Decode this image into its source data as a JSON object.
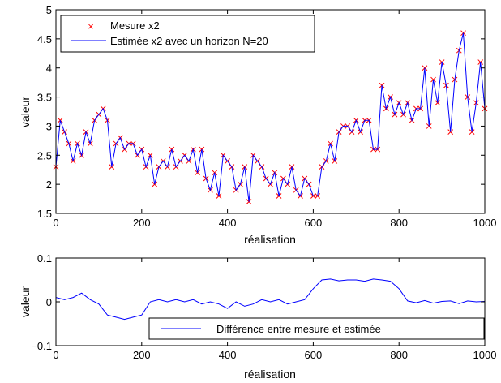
{
  "chart_data": [
    {
      "type": "line",
      "xlabel": "réalisation",
      "ylabel": "valeur",
      "xlim": [
        0,
        1000
      ],
      "ylim": [
        1.5,
        5
      ],
      "xticks": [
        0,
        200,
        400,
        600,
        800,
        1000
      ],
      "yticks": [
        1.5,
        2,
        2.5,
        3,
        3.5,
        4,
        4.5,
        5
      ],
      "ytick_labels": [
        "1.5",
        "2",
        "2.5",
        "3",
        "3.5",
        "4",
        "4.5",
        "5"
      ],
      "grid": false,
      "legend_position": "top-left",
      "series": [
        {
          "name": "Mesure x2",
          "style": "markers",
          "marker": "x",
          "color": "#ff0000",
          "x": [
            0,
            10,
            20,
            30,
            40,
            50,
            60,
            70,
            80,
            90,
            100,
            110,
            120,
            130,
            140,
            150,
            160,
            170,
            180,
            190,
            200,
            210,
            220,
            230,
            240,
            250,
            260,
            270,
            280,
            290,
            300,
            310,
            320,
            330,
            340,
            350,
            360,
            370,
            380,
            390,
            400,
            410,
            420,
            430,
            440,
            450,
            460,
            470,
            480,
            490,
            500,
            510,
            520,
            530,
            540,
            550,
            560,
            570,
            580,
            590,
            600,
            610,
            620,
            630,
            640,
            650,
            660,
            670,
            680,
            690,
            700,
            710,
            720,
            730,
            740,
            750,
            760,
            770,
            780,
            790,
            800,
            810,
            820,
            830,
            840,
            850,
            860,
            870,
            880,
            890,
            900,
            910,
            920,
            930,
            940,
            950,
            960,
            970,
            980,
            990,
            1000
          ],
          "values": [
            2.3,
            3.1,
            2.9,
            2.7,
            2.4,
            2.7,
            2.5,
            2.9,
            2.7,
            3.1,
            3.2,
            3.3,
            3.1,
            2.3,
            2.7,
            2.8,
            2.6,
            2.7,
            2.7,
            2.5,
            2.6,
            2.3,
            2.5,
            2.0,
            2.3,
            2.4,
            2.3,
            2.6,
            2.3,
            2.4,
            2.5,
            2.4,
            2.6,
            2.2,
            2.6,
            2.1,
            1.9,
            2.2,
            1.8,
            2.5,
            2.4,
            2.3,
            1.9,
            2.0,
            2.3,
            1.7,
            2.5,
            2.4,
            2.3,
            2.1,
            2.0,
            2.2,
            1.8,
            2.1,
            2.0,
            2.3,
            1.9,
            1.8,
            2.1,
            2.0,
            1.8,
            1.8,
            2.3,
            2.4,
            2.7,
            2.4,
            2.9,
            3.0,
            3.0,
            2.9,
            3.1,
            2.9,
            3.1,
            3.1,
            2.6,
            2.6,
            3.7,
            3.3,
            3.5,
            3.2,
            3.4,
            3.2,
            3.4,
            3.1,
            3.3,
            3.3,
            4.0,
            3.0,
            3.8,
            3.4,
            4.1,
            3.7,
            2.9,
            3.8,
            4.3,
            4.6,
            3.5,
            2.9,
            3.4,
            4.1,
            3.3
          ]
        },
        {
          "name": "Estimée x2 avec un horizon N=20",
          "style": "line",
          "color": "#0000ff",
          "x": [
            0,
            10,
            20,
            30,
            40,
            50,
            60,
            70,
            80,
            90,
            100,
            110,
            120,
            130,
            140,
            150,
            160,
            170,
            180,
            190,
            200,
            210,
            220,
            230,
            240,
            250,
            260,
            270,
            280,
            290,
            300,
            310,
            320,
            330,
            340,
            350,
            360,
            370,
            380,
            390,
            400,
            410,
            420,
            430,
            440,
            450,
            460,
            470,
            480,
            490,
            500,
            510,
            520,
            530,
            540,
            550,
            560,
            570,
            580,
            590,
            600,
            610,
            620,
            630,
            640,
            650,
            660,
            670,
            680,
            690,
            700,
            710,
            720,
            730,
            740,
            750,
            760,
            770,
            780,
            790,
            800,
            810,
            820,
            830,
            840,
            850,
            860,
            870,
            880,
            890,
            900,
            910,
            920,
            930,
            940,
            950,
            960,
            970,
            980,
            990,
            1000
          ],
          "values": [
            2.3,
            3.1,
            2.9,
            2.7,
            2.4,
            2.7,
            2.5,
            2.9,
            2.7,
            3.1,
            3.2,
            3.3,
            3.1,
            2.3,
            2.7,
            2.8,
            2.6,
            2.7,
            2.7,
            2.5,
            2.6,
            2.3,
            2.5,
            2.0,
            2.3,
            2.4,
            2.3,
            2.6,
            2.3,
            2.4,
            2.5,
            2.4,
            2.6,
            2.2,
            2.6,
            2.1,
            1.9,
            2.2,
            1.8,
            2.5,
            2.4,
            2.3,
            1.9,
            2.0,
            2.3,
            1.7,
            2.5,
            2.4,
            2.3,
            2.1,
            2.0,
            2.2,
            1.8,
            2.1,
            2.0,
            2.3,
            1.9,
            1.8,
            2.1,
            2.0,
            1.8,
            1.8,
            2.3,
            2.4,
            2.7,
            2.4,
            2.9,
            3.0,
            3.0,
            2.9,
            3.1,
            2.9,
            3.1,
            3.1,
            2.6,
            2.6,
            3.7,
            3.3,
            3.5,
            3.2,
            3.4,
            3.2,
            3.4,
            3.1,
            3.3,
            3.3,
            4.0,
            3.0,
            3.8,
            3.4,
            4.1,
            3.7,
            2.9,
            3.8,
            4.3,
            4.6,
            3.5,
            2.9,
            3.4,
            4.1,
            3.3
          ]
        }
      ]
    },
    {
      "type": "line",
      "xlabel": "réalisation",
      "ylabel": "valeur",
      "xlim": [
        0,
        1000
      ],
      "ylim": [
        -0.1,
        0.1
      ],
      "xticks": [
        0,
        200,
        400,
        600,
        800,
        1000
      ],
      "yticks": [
        -0.1,
        0,
        0.1
      ],
      "ytick_labels": [
        "−0.1",
        "0",
        "0.1"
      ],
      "grid": false,
      "legend_position": "bottom-right",
      "series": [
        {
          "name": "Différence entre mesure et estimée",
          "style": "line",
          "color": "#0000ff",
          "x": [
            0,
            20,
            40,
            60,
            80,
            100,
            120,
            140,
            160,
            180,
            200,
            220,
            240,
            260,
            280,
            300,
            320,
            340,
            360,
            380,
            400,
            420,
            440,
            460,
            480,
            500,
            520,
            540,
            560,
            580,
            600,
            620,
            640,
            660,
            680,
            700,
            720,
            740,
            760,
            780,
            800,
            820,
            840,
            860,
            880,
            900,
            920,
            940,
            960,
            980,
            1000
          ],
          "values": [
            0.01,
            0.005,
            0.01,
            0.02,
            0.005,
            -0.005,
            -0.03,
            -0.035,
            -0.04,
            -0.035,
            -0.03,
            0.0,
            0.005,
            0.0,
            0.005,
            0.0,
            0.005,
            -0.005,
            0.0,
            -0.005,
            -0.015,
            0.0,
            -0.01,
            -0.005,
            0.005,
            0.0,
            0.005,
            -0.005,
            0.0,
            0.005,
            0.03,
            0.05,
            0.052,
            0.048,
            0.05,
            0.05,
            0.047,
            0.052,
            0.05,
            0.047,
            0.03,
            0.002,
            -0.002,
            0.003,
            -0.003,
            0.001,
            0.002,
            -0.004,
            0.002,
            0.0,
            0.001
          ]
        }
      ]
    }
  ]
}
